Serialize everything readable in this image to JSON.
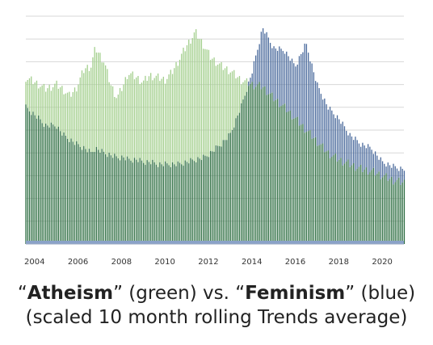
{
  "caption": {
    "open_quote_1": "“",
    "term_a": "Atheism",
    "mid_a": "” (green) vs. “",
    "term_b": "Feminism",
    "mid_b": "” (blue)",
    "line2": "(scaled 10 month rolling Trends average)"
  },
  "chart_data": {
    "type": "bar",
    "title": "",
    "xlabel": "",
    "ylabel": "",
    "x_ticks": [
      "2004",
      "2006",
      "2008",
      "2010",
      "2012",
      "2014",
      "2016",
      "2018",
      "2020"
    ],
    "x_range": [
      2003.6,
      2021.0
    ],
    "ylim": [
      0,
      100
    ],
    "grid": true,
    "legend": "none",
    "colors": {
      "atheism": "#5a9e44",
      "atheism_light": "#a3cf8d",
      "feminism": "#4a6a9c",
      "overlap": "#2e6e42"
    },
    "series": [
      {
        "name": "Atheism",
        "color": "green",
        "points": [
          [
            2003.6,
            73
          ],
          [
            2004.2,
            70
          ],
          [
            2004.5,
            68
          ],
          [
            2005.0,
            70
          ],
          [
            2005.3,
            68
          ],
          [
            2005.6,
            65
          ],
          [
            2005.9,
            68
          ],
          [
            2006.3,
            77
          ],
          [
            2006.6,
            78
          ],
          [
            2006.8,
            86
          ],
          [
            2007.2,
            80
          ],
          [
            2007.5,
            70
          ],
          [
            2007.8,
            64
          ],
          [
            2008.1,
            70
          ],
          [
            2008.3,
            75
          ],
          [
            2008.7,
            73
          ],
          [
            2009.0,
            71
          ],
          [
            2009.3,
            74
          ],
          [
            2009.7,
            73
          ],
          [
            2010.0,
            72
          ],
          [
            2010.3,
            75
          ],
          [
            2010.6,
            80
          ],
          [
            2011.0,
            87
          ],
          [
            2011.4,
            93
          ],
          [
            2011.8,
            87
          ],
          [
            2012.1,
            82
          ],
          [
            2012.6,
            78
          ],
          [
            2013.0,
            76
          ],
          [
            2013.5,
            72
          ],
          [
            2014.0,
            70
          ],
          [
            2014.5,
            69
          ],
          [
            2015.0,
            64
          ],
          [
            2015.5,
            60
          ],
          [
            2016.0,
            55
          ],
          [
            2016.5,
            50
          ],
          [
            2017.0,
            45
          ],
          [
            2017.5,
            40
          ],
          [
            2018.0,
            37
          ],
          [
            2018.5,
            35
          ],
          [
            2019.0,
            33
          ],
          [
            2019.5,
            32
          ],
          [
            2020.0,
            30
          ],
          [
            2020.5,
            28
          ],
          [
            2020.9,
            27
          ]
        ]
      },
      {
        "name": "Feminism",
        "color": "blue",
        "points": [
          [
            2003.6,
            60
          ],
          [
            2004.2,
            55
          ],
          [
            2004.5,
            52
          ],
          [
            2005.0,
            52
          ],
          [
            2005.3,
            48
          ],
          [
            2005.6,
            46
          ],
          [
            2005.9,
            44
          ],
          [
            2006.3,
            42
          ],
          [
            2006.6,
            40
          ],
          [
            2006.8,
            42
          ],
          [
            2007.2,
            40
          ],
          [
            2007.5,
            39
          ],
          [
            2007.8,
            38
          ],
          [
            2008.1,
            38
          ],
          [
            2008.3,
            37
          ],
          [
            2008.7,
            37
          ],
          [
            2009.0,
            36
          ],
          [
            2009.3,
            36
          ],
          [
            2009.7,
            35
          ],
          [
            2010.0,
            35
          ],
          [
            2010.3,
            35
          ],
          [
            2010.6,
            35
          ],
          [
            2011.0,
            36
          ],
          [
            2011.4,
            37
          ],
          [
            2011.8,
            38
          ],
          [
            2012.1,
            40
          ],
          [
            2012.6,
            44
          ],
          [
            2013.0,
            48
          ],
          [
            2013.5,
            60
          ],
          [
            2014.0,
            75
          ],
          [
            2014.5,
            95
          ],
          [
            2015.0,
            86
          ],
          [
            2015.5,
            85
          ],
          [
            2016.0,
            78
          ],
          [
            2016.5,
            88
          ],
          [
            2017.0,
            70
          ],
          [
            2017.5,
            60
          ],
          [
            2018.0,
            55
          ],
          [
            2018.5,
            48
          ],
          [
            2019.0,
            44
          ],
          [
            2019.5,
            42
          ],
          [
            2020.0,
            36
          ],
          [
            2020.5,
            34
          ],
          [
            2020.9,
            33
          ]
        ]
      }
    ]
  }
}
